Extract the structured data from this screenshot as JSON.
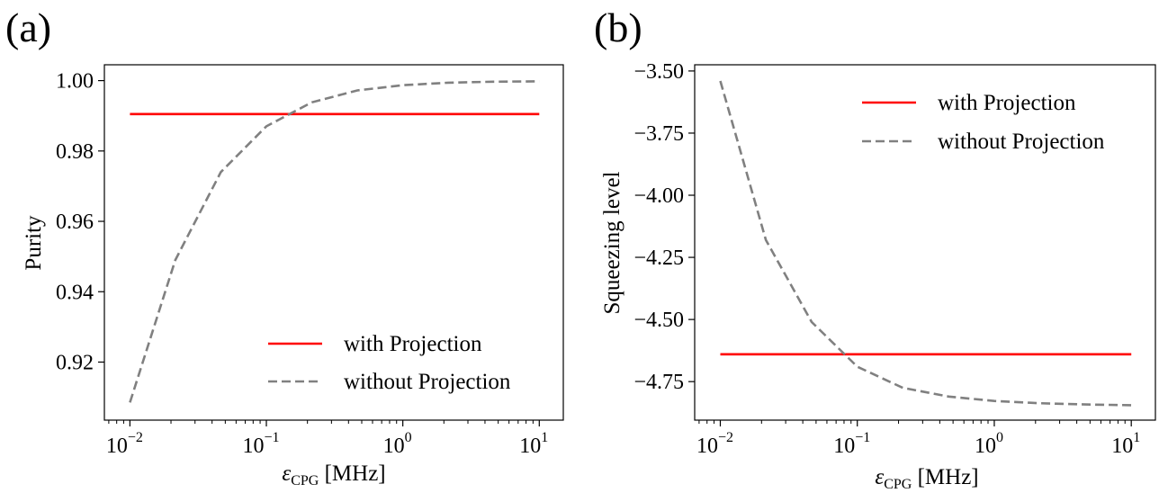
{
  "panels": [
    {
      "label": "(a)"
    },
    {
      "label": "(b)"
    }
  ],
  "chart_data": [
    {
      "type": "line",
      "xscale": "log",
      "xlim": [
        0.0065,
        15
      ],
      "ylim": [
        0.9035,
        1.0045
      ],
      "yticks": [
        0.92,
        0.94,
        0.96,
        0.98,
        1.0
      ],
      "ytick_labels": [
        "0.92",
        "0.94",
        "0.96",
        "0.98",
        "1.00"
      ],
      "xticks": [
        {
          "value": 0.01,
          "base": "10",
          "exp": "−2"
        },
        {
          "value": 0.1,
          "base": "10",
          "exp": "−1"
        },
        {
          "value": 1,
          "base": "10",
          "exp": "0"
        },
        {
          "value": 10,
          "base": "10",
          "exp": "1"
        }
      ],
      "xlabel": "ε",
      "xlabel_sub": "CPG",
      "xlabel_unit": " [MHz]",
      "ylabel": "Purity",
      "legend_position": "lower-right",
      "series": [
        {
          "name": "with Projection",
          "color": "#ff0000",
          "style": "solid",
          "x": [
            0.01,
            10
          ],
          "y": [
            0.9905,
            0.9905
          ]
        },
        {
          "name": "without Projection",
          "color": "#808080",
          "style": "dashed",
          "x": [
            0.01,
            0.0215,
            0.0464,
            0.1,
            0.215,
            0.464,
            1,
            2.15,
            4.64,
            10
          ],
          "y": [
            0.9085,
            0.949,
            0.974,
            0.987,
            0.9938,
            0.9972,
            0.9987,
            0.9994,
            0.9997,
            0.9998
          ]
        }
      ]
    },
    {
      "type": "line",
      "xscale": "log",
      "xlim": [
        0.0065,
        15
      ],
      "ylim": [
        -4.905,
        -3.475
      ],
      "yticks": [
        -4.75,
        -4.5,
        -4.25,
        -4.0,
        -3.75,
        -3.5
      ],
      "ytick_labels": [
        "−4.75",
        "−4.50",
        "−4.25",
        "−4.00",
        "−3.75",
        "−3.50"
      ],
      "xticks": [
        {
          "value": 0.01,
          "base": "10",
          "exp": "−2"
        },
        {
          "value": 0.1,
          "base": "10",
          "exp": "−1"
        },
        {
          "value": 1,
          "base": "10",
          "exp": "0"
        },
        {
          "value": 10,
          "base": "10",
          "exp": "1"
        }
      ],
      "xlabel": "ε",
      "xlabel_sub": "CPG",
      "xlabel_unit": " [MHz]",
      "ylabel": "Squeezing level",
      "legend_position": "upper-right",
      "series": [
        {
          "name": "with Projection",
          "color": "#ff0000",
          "style": "solid",
          "x": [
            0.01,
            10
          ],
          "y": [
            -4.64,
            -4.64
          ]
        },
        {
          "name": "without Projection",
          "color": "#808080",
          "style": "dashed",
          "x": [
            0.01,
            0.0215,
            0.0464,
            0.1,
            0.215,
            0.464,
            1,
            2.15,
            4.64,
            10
          ],
          "y": [
            -3.54,
            -4.18,
            -4.51,
            -4.69,
            -4.775,
            -4.81,
            -4.828,
            -4.837,
            -4.842,
            -4.845
          ]
        }
      ]
    }
  ]
}
